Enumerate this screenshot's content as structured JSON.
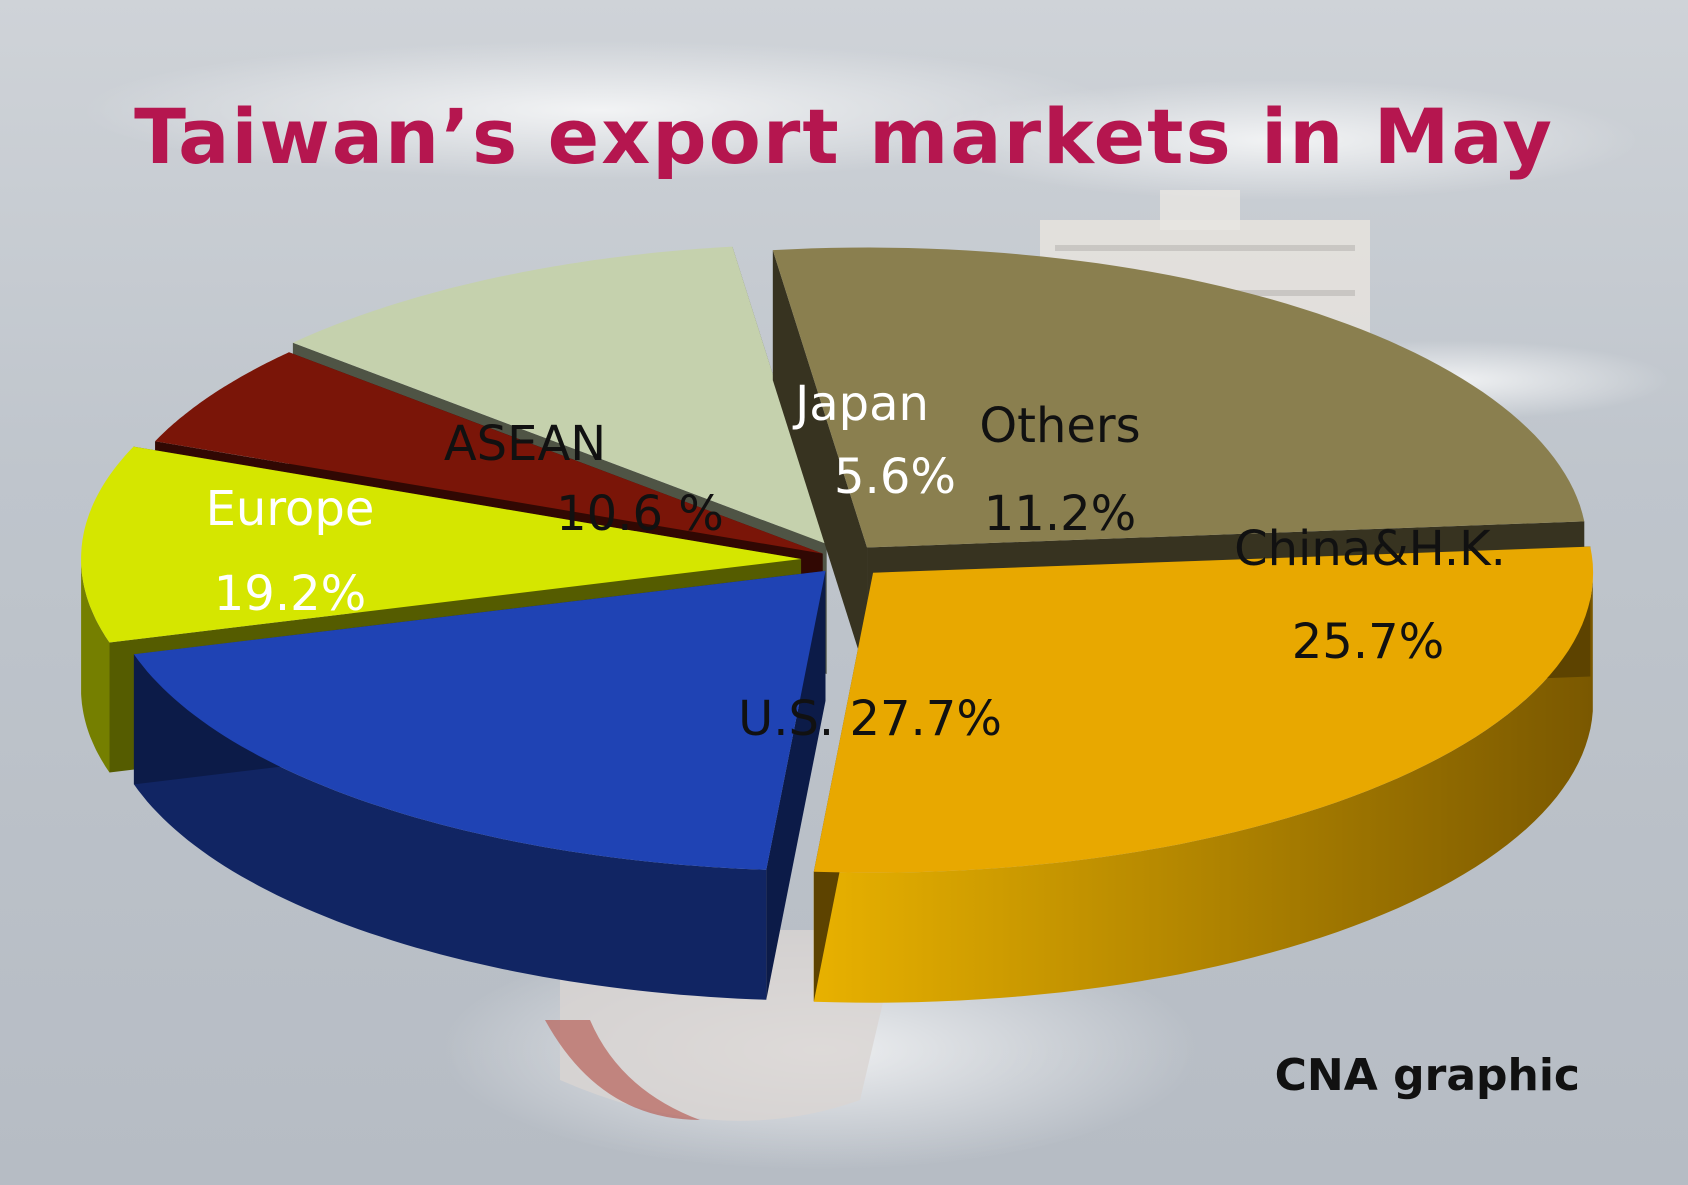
{
  "chart_data": {
    "type": "pie",
    "title": "Taiwan’s export markets in May",
    "slices": [
      {
        "name": "U.S.",
        "label": "U.S. 27.7%",
        "value": 27.7,
        "color": "#e8a800"
      },
      {
        "name": "Europe",
        "label": "Europe",
        "value_label": "19.2%",
        "value": 19.2,
        "color": "#1f43b4"
      },
      {
        "name": "ASEAN",
        "label": "ASEAN",
        "value_label": "10.6 %",
        "value": 10.6,
        "color": "#d5e600"
      },
      {
        "name": "Japan",
        "label": "Japan",
        "value_label": "5.6%",
        "value": 5.6,
        "color": "#7a1508"
      },
      {
        "name": "Others",
        "label": "Others",
        "value_label": "11.2%",
        "value": 11.2,
        "color": "#c5d1ad"
      },
      {
        "name": "China&H.K.",
        "label": "China&H.K.",
        "value_label": "25.7%",
        "value": 25.7,
        "color": "#8a7f4f"
      }
    ],
    "legend": "none",
    "labels_on_slices": true
  },
  "credit": "CNA graphic"
}
